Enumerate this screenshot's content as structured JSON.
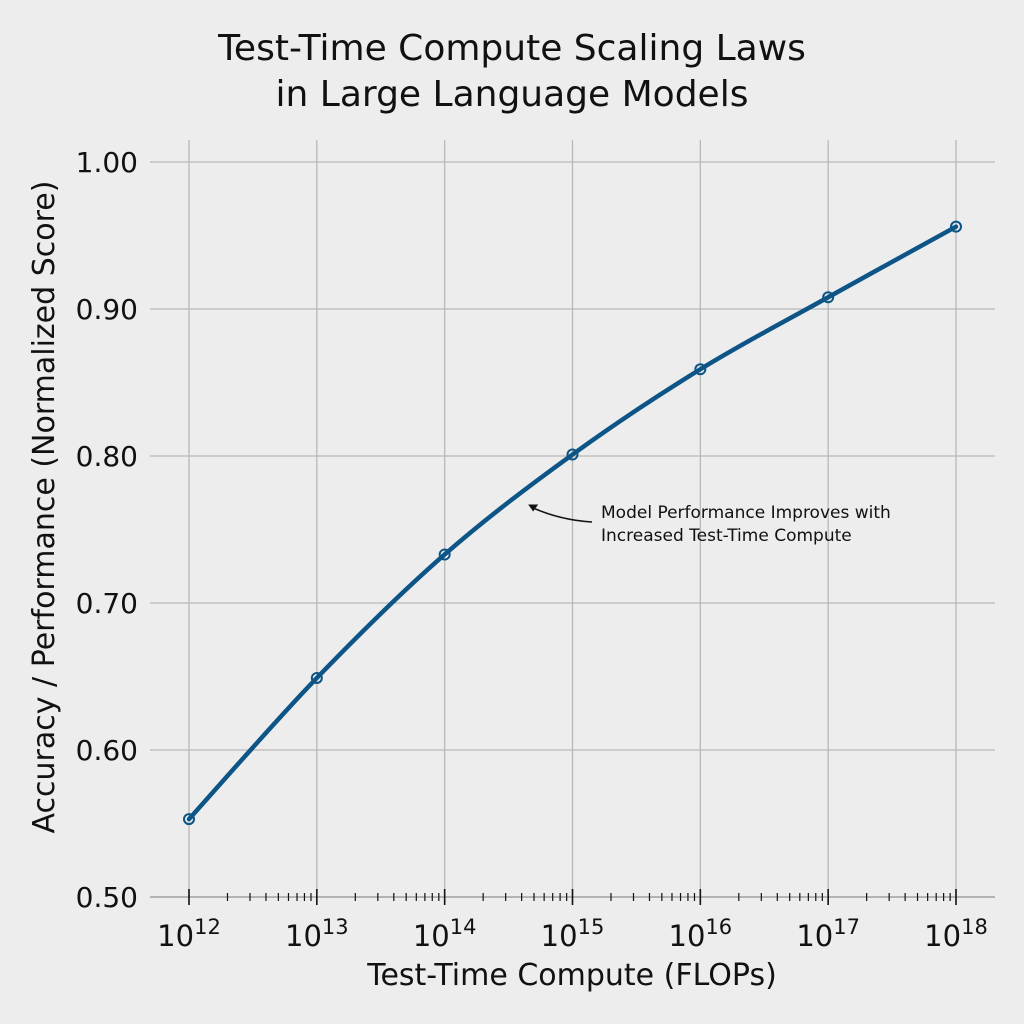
{
  "chart_data": {
    "type": "line",
    "title": "Test-Time Compute Scaling Laws in Large Language Models",
    "title_lines": [
      "Test-Time Compute Scaling Laws",
      "in Large Language Models"
    ],
    "xlabel": "Test-Time Compute (FLOPs)",
    "ylabel": "Accuracy / Performance (Normalized Score)",
    "xscale": "log",
    "x": [
      1000000000000.0,
      10000000000000.0,
      100000000000000.0,
      1000000000000000.0,
      1e+16,
      1e+17,
      1e+18
    ],
    "x_tick_labels": [
      {
        "base": "10",
        "exp": "12"
      },
      {
        "base": "10",
        "exp": "13"
      },
      {
        "base": "10",
        "exp": "14"
      },
      {
        "base": "10",
        "exp": "15"
      },
      {
        "base": "10",
        "exp": "16"
      },
      {
        "base": "10",
        "exp": "17"
      },
      {
        "base": "10",
        "exp": "18"
      }
    ],
    "y_ticks": [
      "0.50",
      "0.60",
      "0.70",
      "0.80",
      "0.90",
      "1.00"
    ],
    "ylim": [
      0.5,
      1.0
    ],
    "xlim": [
      1000000000000.0,
      1e+18
    ],
    "grid": true,
    "legend": null,
    "series": [
      {
        "name": "Model Performance",
        "color": "#0d5586",
        "marker": "open-circle",
        "values": [
          0.553,
          0.649,
          0.733,
          0.801,
          0.859,
          0.908,
          0.956
        ]
      }
    ],
    "annotations": [
      {
        "text_lines": [
          "Model Performance Improves with",
          "Increased Test-Time Compute"
        ],
        "arrow_target_x": 450000000000000.0,
        "arrow_target_y": 0.767
      }
    ]
  },
  "colors": {
    "background": "#ededed",
    "grid": "#b8b8b8",
    "line": "#0d5586",
    "text": "#111111"
  }
}
